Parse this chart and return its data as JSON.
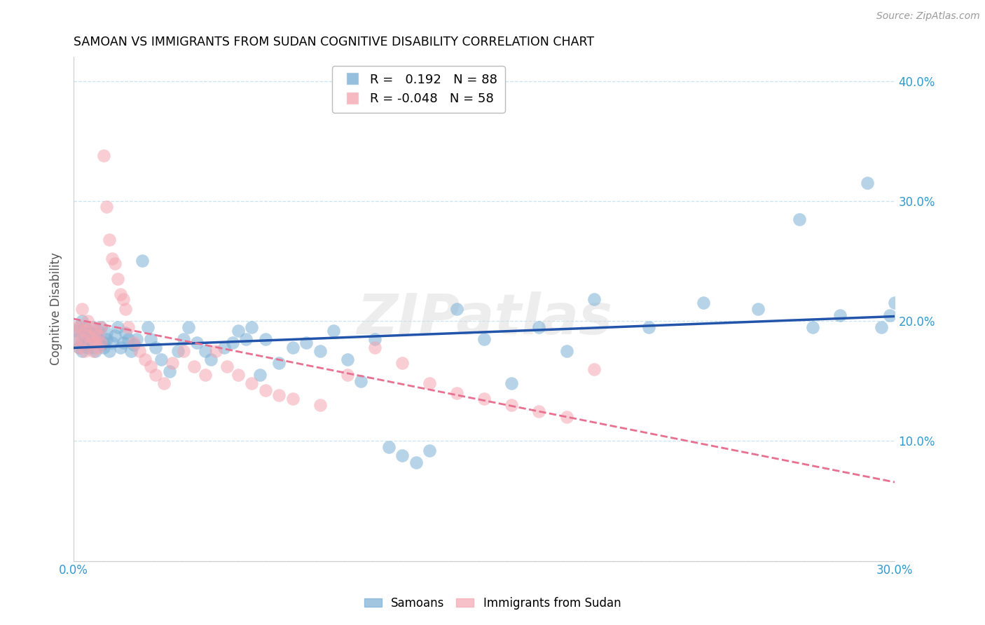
{
  "title": "SAMOAN VS IMMIGRANTS FROM SUDAN COGNITIVE DISABILITY CORRELATION CHART",
  "source": "Source: ZipAtlas.com",
  "ylabel": "Cognitive Disability",
  "xlim": [
    0.0,
    0.3
  ],
  "ylim": [
    0.0,
    0.42
  ],
  "xticks": [
    0.0,
    0.05,
    0.1,
    0.15,
    0.2,
    0.25,
    0.3
  ],
  "xticklabels": [
    "0.0%",
    "",
    "",
    "",
    "",
    "",
    "30.0%"
  ],
  "yticks_left": [
    0.0,
    0.1,
    0.2,
    0.3,
    0.4
  ],
  "yticklabels_left": [
    "",
    "",
    "",
    "",
    ""
  ],
  "yticks_right": [
    0.0,
    0.1,
    0.2,
    0.3,
    0.4
  ],
  "yticklabels_right": [
    "",
    "10.0%",
    "20.0%",
    "30.0%",
    "40.0%"
  ],
  "R_samoan": 0.192,
  "N_samoan": 88,
  "R_sudan": -0.048,
  "N_sudan": 58,
  "legend_labels": [
    "Samoans",
    "Immigrants from Sudan"
  ],
  "blue_color": "#7BAFD4",
  "pink_color": "#F4A7B2",
  "line_blue": "#2255AA",
  "line_pink": "#E87090",
  "watermark": "ZIPatlas",
  "samoan_x": [
    0.001,
    0.001,
    0.002,
    0.002,
    0.003,
    0.003,
    0.003,
    0.004,
    0.004,
    0.004,
    0.005,
    0.005,
    0.005,
    0.006,
    0.006,
    0.007,
    0.007,
    0.007,
    0.008,
    0.008,
    0.009,
    0.009,
    0.01,
    0.01,
    0.011,
    0.011,
    0.012,
    0.012,
    0.013,
    0.014,
    0.015,
    0.016,
    0.017,
    0.018,
    0.019,
    0.02,
    0.021,
    0.022,
    0.023,
    0.025,
    0.027,
    0.028,
    0.03,
    0.032,
    0.035,
    0.038,
    0.04,
    0.042,
    0.045,
    0.048,
    0.05,
    0.055,
    0.058,
    0.06,
    0.063,
    0.065,
    0.068,
    0.07,
    0.075,
    0.08,
    0.085,
    0.09,
    0.095,
    0.1,
    0.105,
    0.11,
    0.115,
    0.12,
    0.125,
    0.13,
    0.14,
    0.15,
    0.16,
    0.17,
    0.18,
    0.19,
    0.21,
    0.23,
    0.25,
    0.265,
    0.27,
    0.28,
    0.29,
    0.295,
    0.298,
    0.3,
    0.305,
    0.31
  ],
  "samoan_y": [
    0.185,
    0.192,
    0.178,
    0.195,
    0.182,
    0.175,
    0.2,
    0.188,
    0.195,
    0.18,
    0.192,
    0.185,
    0.178,
    0.19,
    0.185,
    0.178,
    0.195,
    0.182,
    0.188,
    0.175,
    0.192,
    0.185,
    0.18,
    0.195,
    0.182,
    0.178,
    0.19,
    0.185,
    0.175,
    0.182,
    0.188,
    0.195,
    0.178,
    0.182,
    0.19,
    0.185,
    0.175,
    0.18,
    0.185,
    0.25,
    0.195,
    0.185,
    0.178,
    0.168,
    0.158,
    0.175,
    0.185,
    0.195,
    0.182,
    0.175,
    0.168,
    0.178,
    0.182,
    0.192,
    0.185,
    0.195,
    0.155,
    0.185,
    0.165,
    0.178,
    0.182,
    0.175,
    0.192,
    0.168,
    0.15,
    0.185,
    0.095,
    0.088,
    0.082,
    0.092,
    0.21,
    0.185,
    0.148,
    0.195,
    0.175,
    0.218,
    0.195,
    0.215,
    0.21,
    0.285,
    0.195,
    0.205,
    0.315,
    0.195,
    0.205,
    0.215,
    0.205,
    0.195
  ],
  "sudan_x": [
    0.001,
    0.001,
    0.002,
    0.002,
    0.003,
    0.003,
    0.004,
    0.004,
    0.005,
    0.005,
    0.006,
    0.006,
    0.007,
    0.007,
    0.008,
    0.008,
    0.009,
    0.009,
    0.01,
    0.01,
    0.011,
    0.012,
    0.013,
    0.014,
    0.015,
    0.016,
    0.017,
    0.018,
    0.019,
    0.02,
    0.022,
    0.024,
    0.026,
    0.028,
    0.03,
    0.033,
    0.036,
    0.04,
    0.044,
    0.048,
    0.052,
    0.056,
    0.06,
    0.065,
    0.07,
    0.075,
    0.08,
    0.09,
    0.1,
    0.11,
    0.12,
    0.13,
    0.14,
    0.15,
    0.16,
    0.17,
    0.18,
    0.19
  ],
  "sudan_y": [
    0.195,
    0.185,
    0.178,
    0.195,
    0.21,
    0.185,
    0.192,
    0.175,
    0.188,
    0.2,
    0.182,
    0.195,
    0.185,
    0.175,
    0.192,
    0.182,
    0.188,
    0.178,
    0.195,
    0.182,
    0.338,
    0.295,
    0.268,
    0.252,
    0.248,
    0.235,
    0.222,
    0.218,
    0.21,
    0.195,
    0.182,
    0.175,
    0.168,
    0.162,
    0.155,
    0.148,
    0.165,
    0.175,
    0.162,
    0.155,
    0.175,
    0.162,
    0.155,
    0.148,
    0.142,
    0.138,
    0.135,
    0.13,
    0.155,
    0.178,
    0.165,
    0.148,
    0.14,
    0.135,
    0.13,
    0.125,
    0.12,
    0.16
  ]
}
